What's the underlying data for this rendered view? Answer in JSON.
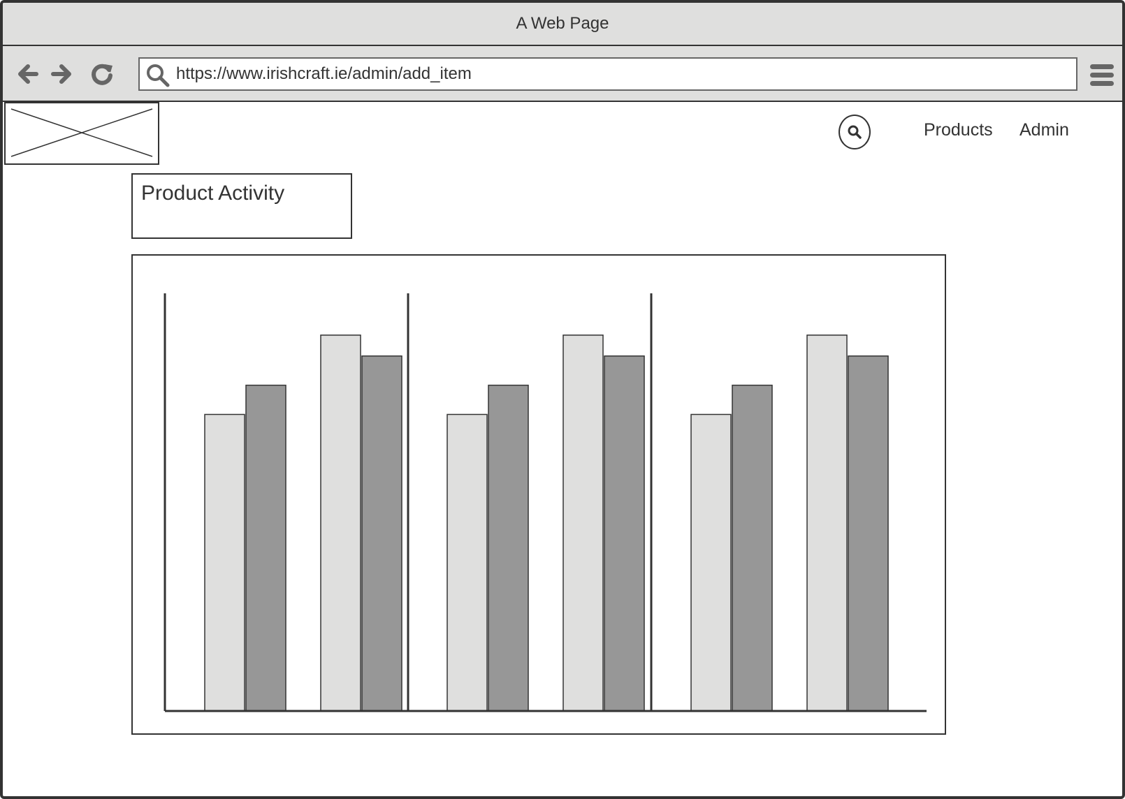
{
  "window": {
    "title": "A Web Page"
  },
  "toolbar": {
    "url": "https://www.irishcraft.ie/admin/add_item",
    "back_icon": "arrow-left-icon",
    "forward_icon": "arrow-right-icon",
    "reload_icon": "reload-icon",
    "menu_icon": "hamburger-menu-icon"
  },
  "header": {
    "logo_icon": "image-placeholder-icon",
    "search_icon": "search-icon",
    "nav": [
      "Products",
      "Admin"
    ]
  },
  "main": {
    "title": "Product Activity"
  },
  "colors": {
    "series_light": "#dfdfde",
    "series_dark": "#979797",
    "stroke": "#333333"
  },
  "chart_data": {
    "type": "bar",
    "categories": [
      "",
      "",
      "",
      "",
      "",
      ""
    ],
    "series": [
      {
        "values": [
          71,
          90,
          71,
          90,
          71,
          90
        ]
      },
      {
        "values": [
          78,
          85,
          78,
          85,
          78,
          85
        ]
      }
    ],
    "ylim": [
      0,
      100
    ],
    "grid": false,
    "legend": "none"
  }
}
